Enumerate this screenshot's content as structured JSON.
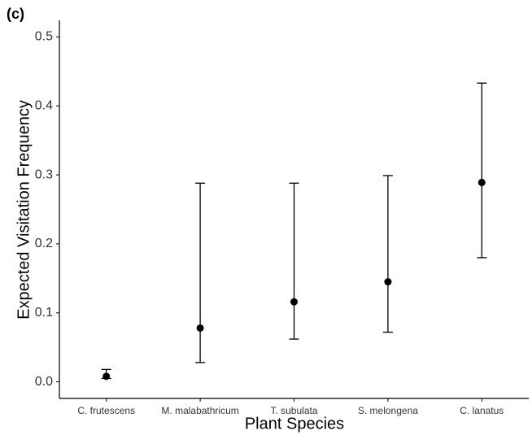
{
  "chart_data": {
    "type": "errorpoint",
    "panel_label": "(c)",
    "x_label": "Plant Species",
    "y_label": "Expected Visitation Frequency",
    "categories": [
      "C. frutescens",
      "M. malabathricum",
      "T. subulata",
      "S. melongena",
      "C. lanatus"
    ],
    "values": [
      0.008,
      0.078,
      0.116,
      0.145,
      0.289
    ],
    "lower": [
      0.005,
      0.028,
      0.062,
      0.072,
      0.18
    ],
    "upper": [
      0.018,
      0.288,
      0.288,
      0.299,
      0.433
    ],
    "color": "#000000",
    "ylim": [
      -0.024,
      0.524
    ],
    "yticks": [
      {
        "value": 0,
        "label": "0.0"
      },
      0.1,
      0.2,
      0.3,
      0.4,
      0.5
    ]
  }
}
